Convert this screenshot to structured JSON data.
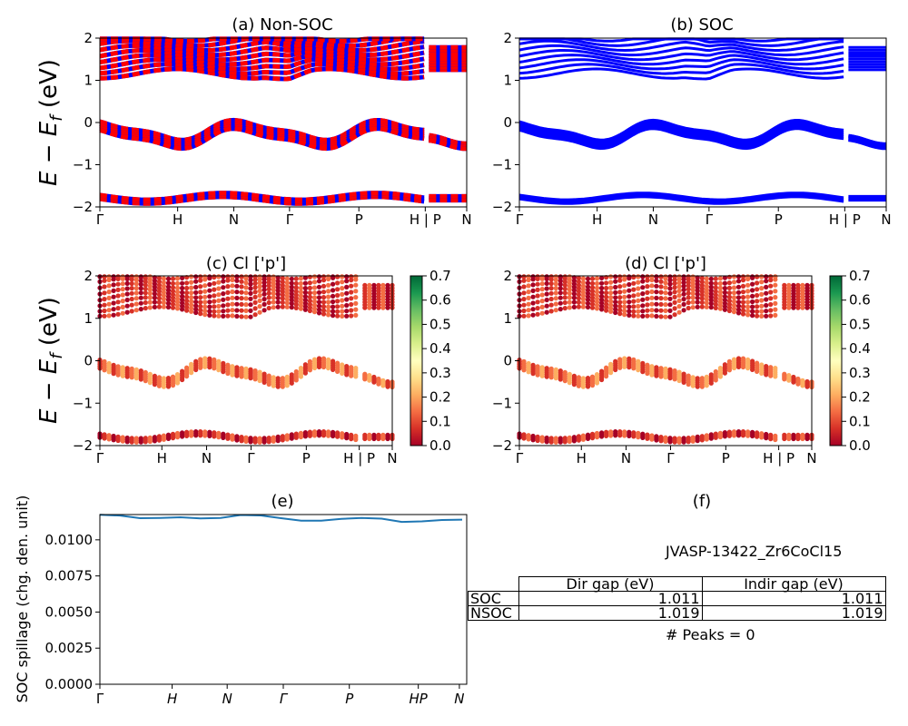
{
  "chart_data": [
    {
      "id": "a",
      "type": "line",
      "title": "(a) Non-SOC",
      "ylabel": "$E - E_f$ (eV)",
      "ylim": [
        -2,
        2
      ],
      "yticks": [
        "2",
        "1",
        "0",
        "−1",
        "−2"
      ],
      "xticks": [
        "Γ",
        "H",
        "N",
        "Γ",
        "P",
        "H | P",
        "N"
      ],
      "colors": [
        "#ff0000",
        "#0000ff"
      ],
      "grid": false
    },
    {
      "id": "b",
      "type": "line",
      "title": "(b) SOC",
      "ylim": [
        -2,
        2
      ],
      "yticks": [
        "2",
        "1",
        "0",
        "−1",
        "−2"
      ],
      "xticks": [
        "Γ",
        "H",
        "N",
        "Γ",
        "P",
        "H | P",
        "N"
      ],
      "colors": [
        "#0000ff"
      ],
      "grid": false
    },
    {
      "id": "c",
      "type": "scatter",
      "title": "(c)  Cl ['p']",
      "ylabel": "$E - E_f$ (eV)",
      "ylim": [
        -2,
        2
      ],
      "yticks": [
        "2",
        "1",
        "0",
        "−1",
        "−2"
      ],
      "xticks": [
        "Γ",
        "H",
        "N",
        "Γ",
        "P",
        "H | P",
        "N"
      ],
      "colorbar": {
        "ticks": [
          "0.7",
          "0.6",
          "0.5",
          "0.4",
          "0.3",
          "0.2",
          "0.1",
          "0.0"
        ],
        "range": [
          0,
          0.7
        ],
        "colormap": "RdYlGn"
      }
    },
    {
      "id": "d",
      "type": "scatter",
      "title": "(d) Cl ['p']",
      "ylim": [
        -2,
        2
      ],
      "yticks": [
        "2",
        "1",
        "0",
        "−1",
        "−2"
      ],
      "xticks": [
        "Γ",
        "H",
        "N",
        "Γ",
        "P",
        "H | P",
        "N"
      ],
      "colorbar": {
        "ticks": [
          "0.7",
          "0.6",
          "0.5",
          "0.4",
          "0.3",
          "0.2",
          "0.1",
          "0.0"
        ],
        "range": [
          0,
          0.7
        ],
        "colormap": "RdYlGn"
      }
    },
    {
      "id": "e",
      "type": "line",
      "title": "(e)",
      "ylabel": "SOC spillage (chg. den. unit)",
      "ylim": [
        0,
        0.01175
      ],
      "yticks": [
        "0.0100",
        "0.0075",
        "0.0050",
        "0.0025",
        "0.0000"
      ],
      "xticks": [
        "Γ",
        "H",
        "N",
        "Γ",
        "P",
        "HP",
        "N"
      ],
      "series": [
        {
          "values": [
            0.01173,
            0.01168,
            0.0115,
            0.01152,
            0.01156,
            0.01148,
            0.01151,
            0.01172,
            0.01169,
            0.0115,
            0.01132,
            0.01133,
            0.01145,
            0.01152,
            0.01147,
            0.01124,
            0.01128,
            0.01137,
            0.0114
          ]
        }
      ],
      "color": "#1f77b4"
    },
    {
      "id": "f",
      "type": "table",
      "title": "(f)",
      "jid": "JVASP-13422_Zr6CoCl15",
      "columns": [
        "Dir gap (eV)",
        "Indir gap (eV)"
      ],
      "rows": [
        {
          "label": "SOC",
          "dir": "1.011",
          "indir": "1.011"
        },
        {
          "label": "NSOC",
          "dir": "1.019",
          "indir": "1.019"
        }
      ],
      "peaks": "# Peaks = 0"
    }
  ]
}
